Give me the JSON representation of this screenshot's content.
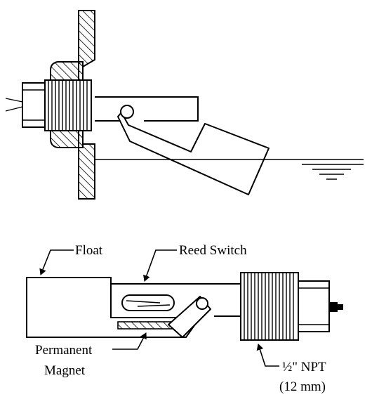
{
  "labels": {
    "float": "Float",
    "reed_switch": "Reed Switch",
    "permanent": "Permanent",
    "magnet": "Magnet",
    "npt": "½\" NPT",
    "npt_metric": "(12 mm)"
  }
}
